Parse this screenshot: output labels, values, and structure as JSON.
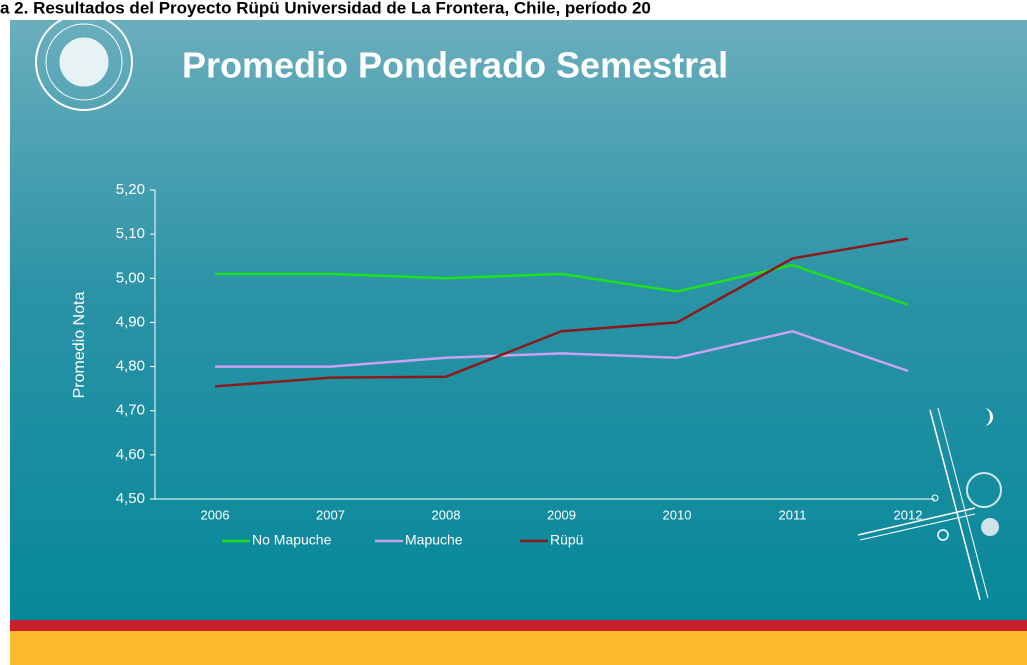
{
  "caption": "a 2. Resultados del Proyecto Rüpü Universidad de La Frontera, Chile, período 20",
  "chart_data": {
    "type": "line",
    "title": "Promedio Ponderado Semestral",
    "y_label": "Promedio Nota",
    "categories": [
      "2006",
      "2007",
      "2008",
      "2009",
      "2010",
      "2011",
      "2012"
    ],
    "series": [
      {
        "name": "No Mapuche",
        "color": "#1fe01f",
        "values": [
          5.01,
          5.01,
          5.0,
          5.01,
          4.97,
          5.03,
          4.94
        ]
      },
      {
        "name": "Mapuche",
        "color": "#c9a2f2",
        "values": [
          4.8,
          4.8,
          4.82,
          4.83,
          4.82,
          4.88,
          4.79
        ]
      },
      {
        "name": "Rüpü",
        "color": "#8b1a1a",
        "values": [
          4.755,
          4.775,
          4.777,
          4.88,
          4.9,
          5.045,
          5.09
        ]
      }
    ],
    "ylim": [
      4.5,
      5.2
    ],
    "yticks": [
      {
        "value": 4.5,
        "label": "4,50"
      },
      {
        "value": 4.6,
        "label": "4,60"
      },
      {
        "value": 4.7,
        "label": "4,70"
      },
      {
        "value": 4.8,
        "label": "4,80"
      },
      {
        "value": 4.9,
        "label": "4,90"
      },
      {
        "value": 5.0,
        "label": "5,00"
      },
      {
        "value": 5.1,
        "label": "5,10"
      },
      {
        "value": 5.2,
        "label": "5,20"
      }
    ],
    "grid": false,
    "legend": "bottom"
  }
}
